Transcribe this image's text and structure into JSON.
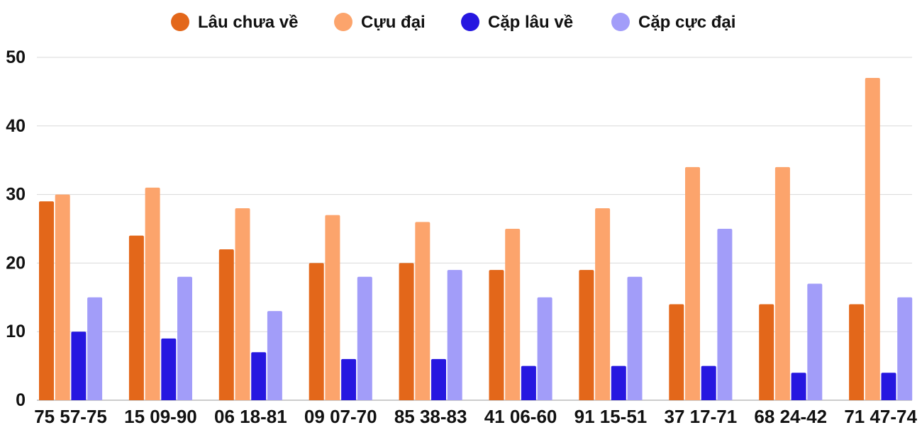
{
  "chart_data": {
    "type": "bar",
    "categories": [
      "75 57-75",
      "15 09-90",
      "06 18-81",
      "09 07-70",
      "85 38-83",
      "41 06-60",
      "91 15-51",
      "37 17-71",
      "68 24-42",
      "71 47-74"
    ],
    "series": [
      {
        "name": "Lâu chưa về",
        "color": "#e3671a",
        "values": [
          29,
          24,
          22,
          20,
          20,
          19,
          19,
          14,
          14,
          14
        ]
      },
      {
        "name": "Cựu đại",
        "color": "#fca46c",
        "values": [
          30,
          31,
          28,
          27,
          26,
          25,
          28,
          34,
          34,
          47
        ]
      },
      {
        "name": "Cặp lâu về",
        "color": "#2617e0",
        "values": [
          10,
          9,
          7,
          6,
          6,
          5,
          5,
          5,
          4,
          4
        ]
      },
      {
        "name": "Cặp cực đại",
        "color": "#a29df9",
        "values": [
          15,
          18,
          13,
          18,
          19,
          15,
          18,
          25,
          17,
          15
        ]
      }
    ],
    "yticks": [
      "0",
      "10",
      "20",
      "30",
      "40",
      "50"
    ],
    "ylim": [
      0,
      50
    ],
    "grid": true,
    "legend_position": "top-center",
    "title": "",
    "xlabel": "",
    "ylabel": ""
  }
}
